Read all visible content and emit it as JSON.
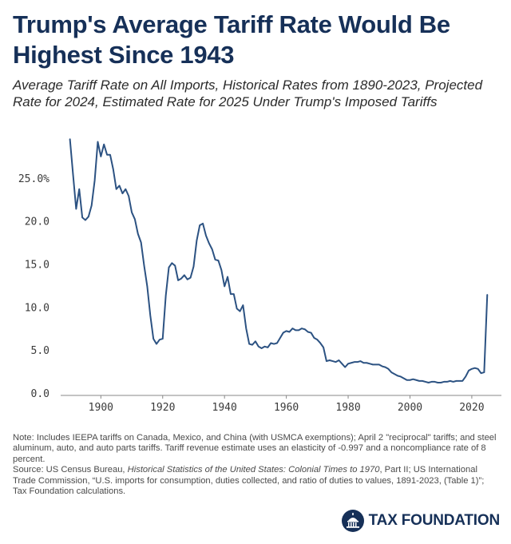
{
  "title": "Trump's Average Tariff Rate Would Be Highest Since 1943",
  "subtitle": "Average Tariff Rate on All Imports, Historical Rates from 1890-2023, Projected Rate for 2024, Estimated Rate for 2025 Under Trump's Imposed Tariffs",
  "note": {
    "line1": "Note: Includes IEEPA tariffs on Canada, Mexico, and China (with USMCA exemptions); April 2 \"reciprocal\" tariffs; and steel aluminum, auto, and auto parts tariffs. Tariff revenue estimate uses an elasticity of -0.997 and a noncompliance rate of 8 percent.",
    "source_prefix": "Source: US Census Bureau, ",
    "source_italic": "Historical Statistics of the United States: Colonial Times to 1970",
    "source_rest": ", Part II; US International Trade Commission, “U.S. imports for consumption, duties collected, and ratio of duties to values, 1891-2023, (Table 1)”; Tax Foundation calculations."
  },
  "brand": {
    "name": "TAX FOUNDATION",
    "logo_icon": "capitol-dome-icon",
    "color": "#163058"
  },
  "colors": {
    "line": "#2c5282",
    "title": "#163058",
    "axis": "#3a3a3a"
  },
  "chart_data": {
    "type": "line",
    "title": "Trump's Average Tariff Rate Would Be Highest Since 1943",
    "xlabel": "",
    "ylabel": "",
    "xlim": [
      1887,
      2027
    ],
    "ylim": [
      0,
      30
    ],
    "x_ticks": [
      1900,
      1920,
      1940,
      1960,
      1980,
      2000,
      2020
    ],
    "y_ticks": [
      0,
      5,
      10,
      15,
      20,
      25
    ],
    "y_tick_labels": [
      "0.0",
      "5.0",
      "10.0",
      "15.0",
      "20.0",
      "25.0%"
    ],
    "grid": false,
    "series": [
      {
        "x": [
          1890,
          1891,
          1892,
          1893,
          1894,
          1895,
          1896,
          1897,
          1898,
          1899,
          1900,
          1901,
          1902,
          1903,
          1904,
          1905,
          1906,
          1907,
          1908,
          1909,
          1910,
          1911,
          1912,
          1913,
          1914,
          1915,
          1916,
          1917,
          1918,
          1919,
          1920,
          1921,
          1922,
          1923,
          1924,
          1925,
          1926,
          1927,
          1928,
          1929,
          1930,
          1931,
          1932,
          1933,
          1934,
          1935,
          1936,
          1937,
          1938,
          1939,
          1940,
          1941,
          1942,
          1943,
          1944,
          1945,
          1946,
          1947,
          1948,
          1949,
          1950,
          1951,
          1952,
          1953,
          1954,
          1955,
          1956,
          1957,
          1958,
          1959,
          1960,
          1961,
          1962,
          1963,
          1964,
          1965,
          1966,
          1967,
          1968,
          1969,
          1970,
          1971,
          1972,
          1973,
          1974,
          1975,
          1976,
          1977,
          1978,
          1979,
          1980,
          1981,
          1982,
          1983,
          1984,
          1985,
          1986,
          1987,
          1988,
          1989,
          1990,
          1991,
          1992,
          1993,
          1994,
          1995,
          1996,
          1997,
          1998,
          1999,
          2000,
          2001,
          2002,
          2003,
          2004,
          2005,
          2006,
          2007,
          2008,
          2009,
          2010,
          2011,
          2012,
          2013,
          2014,
          2015,
          2016,
          2017,
          2018,
          2019,
          2020,
          2021,
          2022,
          2023,
          2024,
          2025
        ],
        "values": [
          29.6,
          25.5,
          21.5,
          23.8,
          20.5,
          20.2,
          20.6,
          21.9,
          24.8,
          29.3,
          27.6,
          29.0,
          27.8,
          27.8,
          26.1,
          23.8,
          24.2,
          23.3,
          23.8,
          23.0,
          21.1,
          20.3,
          18.6,
          17.6,
          14.9,
          12.5,
          9.1,
          6.4,
          5.8,
          6.3,
          6.4,
          11.4,
          14.7,
          15.2,
          14.9,
          13.2,
          13.4,
          13.8,
          13.3,
          13.5,
          14.8,
          17.8,
          19.6,
          19.8,
          18.4,
          17.5,
          16.8,
          15.6,
          15.5,
          14.4,
          12.5,
          13.6,
          11.6,
          11.6,
          9.9,
          9.6,
          10.3,
          7.6,
          5.8,
          5.7,
          6.1,
          5.5,
          5.3,
          5.5,
          5.4,
          5.9,
          5.8,
          5.9,
          6.5,
          7.1,
          7.3,
          7.2,
          7.6,
          7.4,
          7.4,
          7.6,
          7.5,
          7.2,
          7.1,
          6.5,
          6.3,
          5.9,
          5.4,
          3.8,
          3.9,
          3.8,
          3.7,
          3.9,
          3.5,
          3.1,
          3.5,
          3.6,
          3.7,
          3.7,
          3.8,
          3.6,
          3.6,
          3.5,
          3.4,
          3.4,
          3.4,
          3.2,
          3.1,
          2.9,
          2.5,
          2.3,
          2.1,
          2.0,
          1.8,
          1.6,
          1.6,
          1.7,
          1.6,
          1.5,
          1.5,
          1.4,
          1.3,
          1.4,
          1.4,
          1.3,
          1.3,
          1.4,
          1.4,
          1.5,
          1.4,
          1.5,
          1.5,
          1.5,
          2.0,
          2.7,
          2.9,
          3.0,
          2.9,
          2.4,
          2.5,
          11.5
        ]
      }
    ]
  }
}
